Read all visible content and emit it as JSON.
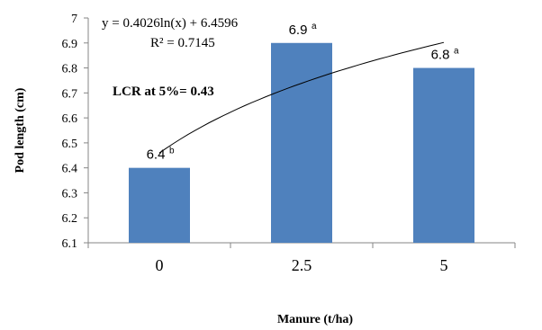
{
  "chart_data": {
    "type": "bar",
    "categories": [
      "0",
      "2.5",
      "5"
    ],
    "values": [
      6.4,
      6.9,
      6.8
    ],
    "data_labels": [
      {
        "value": "6.4",
        "letter": "b"
      },
      {
        "value": "6.9",
        "letter": "a"
      },
      {
        "value": "6.8",
        "letter": "a"
      }
    ],
    "xlabel": "Manure (t/ha)",
    "ylabel": "Pod length (cm)",
    "ylim": [
      6.1,
      7.0
    ],
    "yticks": [
      "6.1",
      "6.2",
      "6.3",
      "6.4",
      "6.5",
      "6.6",
      "6.7",
      "6.8",
      "6.9",
      "7"
    ],
    "bar_color": "#4f81bd",
    "trendline": {
      "type": "logarithmic",
      "a": 0.4026,
      "b": 6.4596,
      "equation": "y = 0.4026ln(x) + 6.4596",
      "r_squared": "R² = 0.7145"
    },
    "annotation": "LCR at 5%= 0.43",
    "grid": false,
    "legend": "none"
  }
}
